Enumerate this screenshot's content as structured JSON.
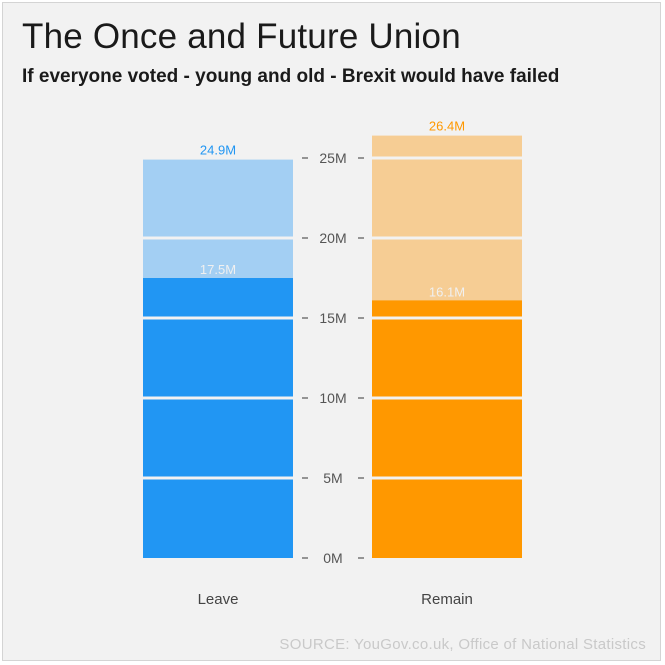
{
  "title": "The Once and Future Union",
  "subtitle": "If everyone voted - young and old - Brexit would have failed",
  "source": "SOURCE: YouGov.co.uk, Office of National Statistics",
  "colors": {
    "leave_actual": "#2196f3",
    "leave_potential": "#a3cff3",
    "remain_actual": "#ff9800",
    "remain_potential": "#f6cd94",
    "leave_label": "#2196f3",
    "remain_label": "#ff9800",
    "inner_label": "#f0f0f0",
    "divider": "#f2f2f2"
  },
  "chart_data": {
    "type": "bar",
    "categories": [
      "Leave",
      "Remain"
    ],
    "series": [
      {
        "values": [
          17.5,
          16.1
        ]
      },
      {
        "values": [
          24.9,
          26.4
        ]
      }
    ],
    "value_labels": {
      "actual": [
        "17.5M",
        "16.1M"
      ],
      "potential": [
        "24.9M",
        "26.4M"
      ]
    },
    "yticks": [
      0,
      5,
      10,
      15,
      20,
      25
    ],
    "ytick_labels": [
      "0M",
      "5M",
      "10M",
      "15M",
      "20M",
      "25M"
    ],
    "ylim": [
      0,
      26.4
    ],
    "grid": false,
    "legend": "none"
  }
}
